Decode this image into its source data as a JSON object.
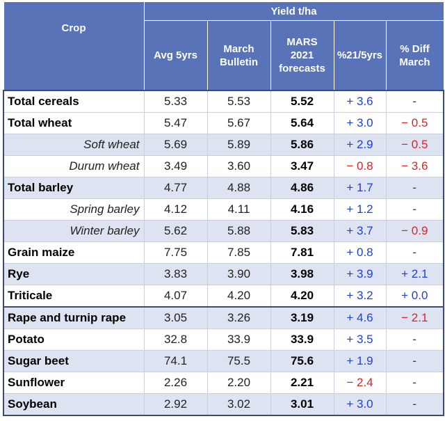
{
  "header": {
    "group_label": "Yield t/ha",
    "col_crop": "Crop",
    "col_avg": "Avg 5yrs",
    "col_march_1": "March",
    "col_march_2": "Bulletin",
    "col_fc_1": "MARS",
    "col_fc_2": "2021",
    "col_fc_3": "forecasts",
    "col_pct": "%21/5yrs",
    "col_diff_1": "% Diff",
    "col_diff_2": "March"
  },
  "rows": [
    {
      "crop": "Total cereals",
      "avg": "5.33",
      "march": "5.53",
      "fc": "5.52",
      "pct": "+ 3.6",
      "pct_sign": "pos",
      "diff": "-",
      "diff_sign": "dash"
    },
    {
      "crop": "Total wheat",
      "avg": "5.47",
      "march": "5.67",
      "fc": "5.64",
      "pct": "+ 3.0",
      "pct_sign": "pos",
      "diff": "− 0.5",
      "diff_sign": "neg"
    },
    {
      "crop": "Soft wheat",
      "avg": "5.69",
      "march": "5.89",
      "fc": "5.86",
      "pct": "+ 2.9",
      "pct_sign": "pos",
      "diff": "− 0.5",
      "diff_sign": "neg"
    },
    {
      "crop": "Durum wheat",
      "avg": "3.49",
      "march": "3.60",
      "fc": "3.47",
      "pct": "− 0.8",
      "pct_sign": "neg",
      "diff": "− 3.6",
      "diff_sign": "neg"
    },
    {
      "crop": "Total barley",
      "avg": "4.77",
      "march": "4.88",
      "fc": "4.86",
      "pct": "+ 1.7",
      "pct_sign": "pos",
      "diff": "-",
      "diff_sign": "dash"
    },
    {
      "crop": "Spring barley",
      "avg": "4.12",
      "march": "4.11",
      "fc": "4.16",
      "pct": "+ 1.2",
      "pct_sign": "pos",
      "diff": "-",
      "diff_sign": "dash"
    },
    {
      "crop": "Winter barley",
      "avg": "5.62",
      "march": "5.88",
      "fc": "5.83",
      "pct": "+ 3.7",
      "pct_sign": "pos",
      "diff": "− 0.9",
      "diff_sign": "neg"
    },
    {
      "crop": "Grain maize",
      "avg": "7.75",
      "march": "7.85",
      "fc": "7.81",
      "pct": "+ 0.8",
      "pct_sign": "pos",
      "diff": "-",
      "diff_sign": "dash"
    },
    {
      "crop": "Rye",
      "avg": "3.83",
      "march": "3.90",
      "fc": "3.98",
      "pct": "+ 3.9",
      "pct_sign": "pos",
      "diff": "+ 2.1",
      "diff_sign": "pos"
    },
    {
      "crop": "Triticale",
      "avg": "4.07",
      "march": "4.20",
      "fc": "4.20",
      "pct": "+ 3.2",
      "pct_sign": "pos",
      "diff": "+ 0.0",
      "diff_sign": "pos"
    },
    {
      "crop": "Rape and turnip rape",
      "avg": "3.05",
      "march": "3.26",
      "fc": "3.19",
      "pct": "+ 4.6",
      "pct_sign": "pos",
      "diff": "− 2.1",
      "diff_sign": "neg"
    },
    {
      "crop": "Potato",
      "avg": "32.8",
      "march": "33.9",
      "fc": "33.9",
      "pct": "+ 3.5",
      "pct_sign": "pos",
      "diff": "-",
      "diff_sign": "dash"
    },
    {
      "crop": "Sugar beet",
      "avg": "74.1",
      "march": "75.5",
      "fc": "75.6",
      "pct": "+ 1.9",
      "pct_sign": "pos",
      "diff": "-",
      "diff_sign": "dash"
    },
    {
      "crop": "Sunflower",
      "avg": "2.26",
      "march": "2.20",
      "fc": "2.21",
      "pct": "− 2.4",
      "pct_sign": "neg",
      "diff": "-",
      "diff_sign": "dash"
    },
    {
      "crop": "Soybean",
      "avg": "2.92",
      "march": "3.02",
      "fc": "3.01",
      "pct": "+ 3.0",
      "pct_sign": "pos",
      "diff": "-",
      "diff_sign": "dash"
    }
  ]
}
